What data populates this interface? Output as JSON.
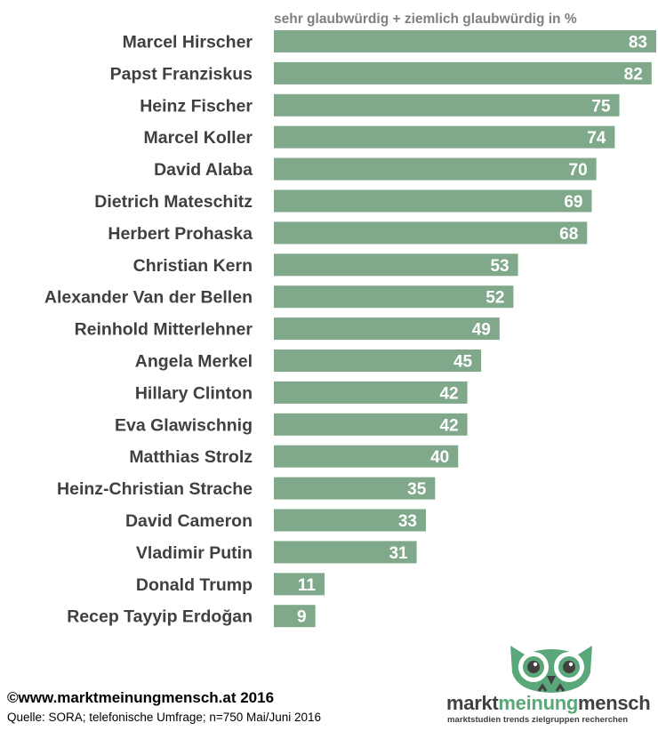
{
  "chart_data": {
    "type": "bar",
    "orientation": "horizontal",
    "subtitle": "sehr glaubwürdig + ziemlich glaubwürdig in %",
    "categories": [
      "Marcel Hirscher",
      "Papst Franziskus",
      "Heinz Fischer",
      "Marcel Koller",
      "David Alaba",
      "Dietrich Mateschitz",
      "Herbert Prohaska",
      "Christian Kern",
      "Alexander Van der Bellen",
      "Reinhold Mitterlehner",
      "Angela Merkel",
      "Hillary Clinton",
      "Eva Glawischnig",
      "Matthias Strolz",
      "Heinz-Christian Strache",
      "David Cameron",
      "Vladimir Putin",
      "Donald Trump",
      "Recep Tayyip Erdoğan"
    ],
    "values": [
      83,
      82,
      75,
      74,
      70,
      69,
      68,
      53,
      52,
      49,
      45,
      42,
      42,
      40,
      35,
      33,
      31,
      11,
      9
    ],
    "bar_color": "#7fa98a",
    "xlim": [
      0,
      83
    ],
    "grid": false,
    "data_labels": true
  },
  "footer": {
    "copyright": "©www.marktmeinungmensch.at 2016",
    "source": "Quelle: SORA; telefonische Umfrage; n=750 Mai/Juni 2016"
  },
  "logo": {
    "word_part1": "markt",
    "word_part2": "meinung",
    "word_part3": "mensch",
    "tagline": "marktstudien trends zielgruppen recherchen",
    "icon": "owl-icon",
    "accent_color": "#5aa77a"
  }
}
